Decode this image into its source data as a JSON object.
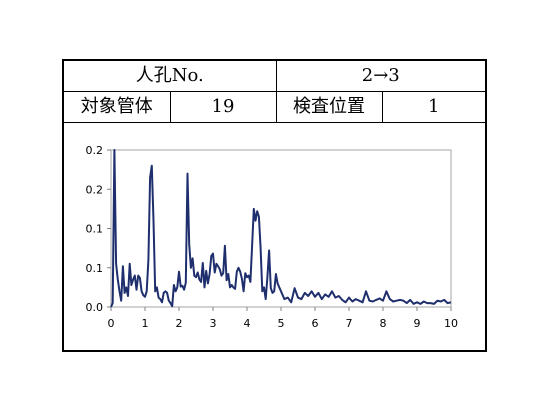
{
  "header": {
    "manhole_label": "人孔No.",
    "manhole_value": "2→3",
    "pipe_label": "対象管体",
    "pipe_value": "19",
    "position_label": "検査位置",
    "position_value": "1"
  },
  "colors": {
    "line": "#1f2f6e",
    "frame": "#000000",
    "plot_border": "#a6a6a6"
  },
  "chart_data": {
    "type": "line",
    "title": "",
    "xlabel": "",
    "ylabel": "",
    "xlim": [
      0,
      10
    ],
    "ylim": [
      0,
      0.2
    ],
    "x_ticks": [
      0,
      1,
      2,
      3,
      4,
      5,
      6,
      7,
      8,
      9,
      10
    ],
    "y_ticks": [
      0.0,
      0.05,
      0.1,
      0.15,
      0.2
    ],
    "y_tick_labels": [
      "0.0",
      "0.1",
      "0.1",
      "0.2",
      "0.2"
    ],
    "grid": false,
    "legend": "none",
    "series": [
      {
        "x": [
          0.0,
          0.05,
          0.1,
          0.15,
          0.2,
          0.25,
          0.3,
          0.35,
          0.4,
          0.45,
          0.5,
          0.55,
          0.6,
          0.65,
          0.7,
          0.75,
          0.8,
          0.85,
          0.9,
          0.95,
          1.0,
          1.05,
          1.1,
          1.15,
          1.2,
          1.25,
          1.3,
          1.35,
          1.4,
          1.45,
          1.5,
          1.55,
          1.6,
          1.65,
          1.7,
          1.75,
          1.8,
          1.85,
          1.9,
          1.95,
          2.0,
          2.05,
          2.1,
          2.15,
          2.2,
          2.25,
          2.3,
          2.35,
          2.4,
          2.45,
          2.5,
          2.55,
          2.6,
          2.65,
          2.7,
          2.75,
          2.8,
          2.85,
          2.9,
          2.95,
          3.0,
          3.05,
          3.1,
          3.15,
          3.2,
          3.25,
          3.3,
          3.35,
          3.4,
          3.45,
          3.5,
          3.55,
          3.6,
          3.65,
          3.7,
          3.75,
          3.8,
          3.85,
          3.9,
          3.95,
          4.0,
          4.05,
          4.1,
          4.15,
          4.2,
          4.25,
          4.3,
          4.35,
          4.4,
          4.45,
          4.5,
          4.55,
          4.6,
          4.65,
          4.7,
          4.75,
          4.8,
          4.85,
          4.9,
          4.95,
          5.0,
          5.1,
          5.2,
          5.3,
          5.4,
          5.5,
          5.6,
          5.7,
          5.8,
          5.9,
          6.0,
          6.1,
          6.2,
          6.3,
          6.4,
          6.5,
          6.6,
          6.7,
          6.8,
          6.9,
          7.0,
          7.1,
          7.2,
          7.3,
          7.4,
          7.5,
          7.6,
          7.7,
          7.8,
          7.9,
          8.0,
          8.1,
          8.2,
          8.3,
          8.4,
          8.5,
          8.6,
          8.7,
          8.8,
          8.9,
          9.0,
          9.1,
          9.2,
          9.3,
          9.4,
          9.5,
          9.6,
          9.7,
          9.8,
          9.9,
          10.0
        ],
        "y": [
          0.0,
          0.005,
          0.21,
          0.055,
          0.035,
          0.02,
          0.008,
          0.052,
          0.018,
          0.025,
          0.014,
          0.055,
          0.028,
          0.035,
          0.04,
          0.022,
          0.04,
          0.037,
          0.02,
          0.015,
          0.013,
          0.02,
          0.06,
          0.165,
          0.18,
          0.11,
          0.02,
          0.025,
          0.012,
          0.01,
          0.006,
          0.018,
          0.02,
          0.018,
          0.008,
          0.005,
          0.001,
          0.028,
          0.02,
          0.025,
          0.045,
          0.026,
          0.027,
          0.022,
          0.031,
          0.17,
          0.08,
          0.05,
          0.062,
          0.04,
          0.038,
          0.044,
          0.035,
          0.032,
          0.056,
          0.025,
          0.046,
          0.03,
          0.042,
          0.065,
          0.068,
          0.044,
          0.055,
          0.052,
          0.048,
          0.04,
          0.043,
          0.078,
          0.034,
          0.042,
          0.025,
          0.028,
          0.025,
          0.023,
          0.045,
          0.05,
          0.045,
          0.036,
          0.02,
          0.043,
          0.038,
          0.04,
          0.032,
          0.078,
          0.125,
          0.11,
          0.122,
          0.115,
          0.075,
          0.02,
          0.025,
          0.01,
          0.038,
          0.072,
          0.024,
          0.018,
          0.02,
          0.042,
          0.03,
          0.025,
          0.02,
          0.01,
          0.012,
          0.006,
          0.024,
          0.012,
          0.01,
          0.018,
          0.014,
          0.02,
          0.013,
          0.018,
          0.01,
          0.016,
          0.013,
          0.02,
          0.012,
          0.014,
          0.009,
          0.006,
          0.012,
          0.007,
          0.01,
          0.008,
          0.006,
          0.02,
          0.008,
          0.007,
          0.009,
          0.011,
          0.008,
          0.02,
          0.01,
          0.007,
          0.008,
          0.009,
          0.008,
          0.005,
          0.009,
          0.004,
          0.006,
          0.004,
          0.007,
          0.005,
          0.005,
          0.004,
          0.008,
          0.007,
          0.009,
          0.005,
          0.006
        ]
      }
    ]
  }
}
